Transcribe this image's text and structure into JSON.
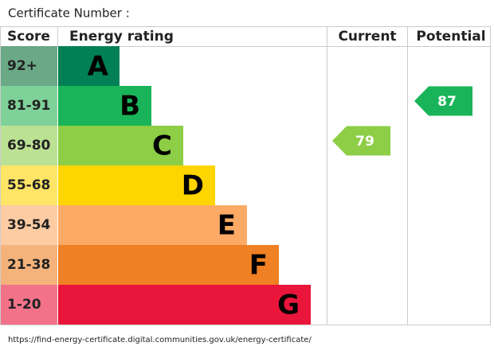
{
  "chart_data": {
    "type": "epc",
    "header": "Certificate Number :",
    "columns": [
      "Score",
      "Energy rating",
      "Current",
      "Potential"
    ],
    "bands": [
      {
        "score": "92+",
        "letter": "A",
        "color": "#008054",
        "score_color": "#6aa886"
      },
      {
        "score": "81-91",
        "letter": "B",
        "color": "#19b459",
        "score_color": "#7fd19a"
      },
      {
        "score": "69-80",
        "letter": "C",
        "color": "#8dce46",
        "score_color": "#bbe193"
      },
      {
        "score": "55-68",
        "letter": "D",
        "color": "#ffd500",
        "score_color": "#ffe566"
      },
      {
        "score": "39-54",
        "letter": "E",
        "color": "#fcaa65",
        "score_color": "#fdcca2"
      },
      {
        "score": "21-38",
        "letter": "F",
        "color": "#ef8023",
        "score_color": "#f5b37b"
      },
      {
        "score": "1-20",
        "letter": "G",
        "color": "#e9153b",
        "score_color": "#f27289"
      }
    ],
    "current": 79,
    "potential": 87,
    "footer": "https://find-energy-certificate.digital.communities.gov.uk/energy-certificate/"
  }
}
